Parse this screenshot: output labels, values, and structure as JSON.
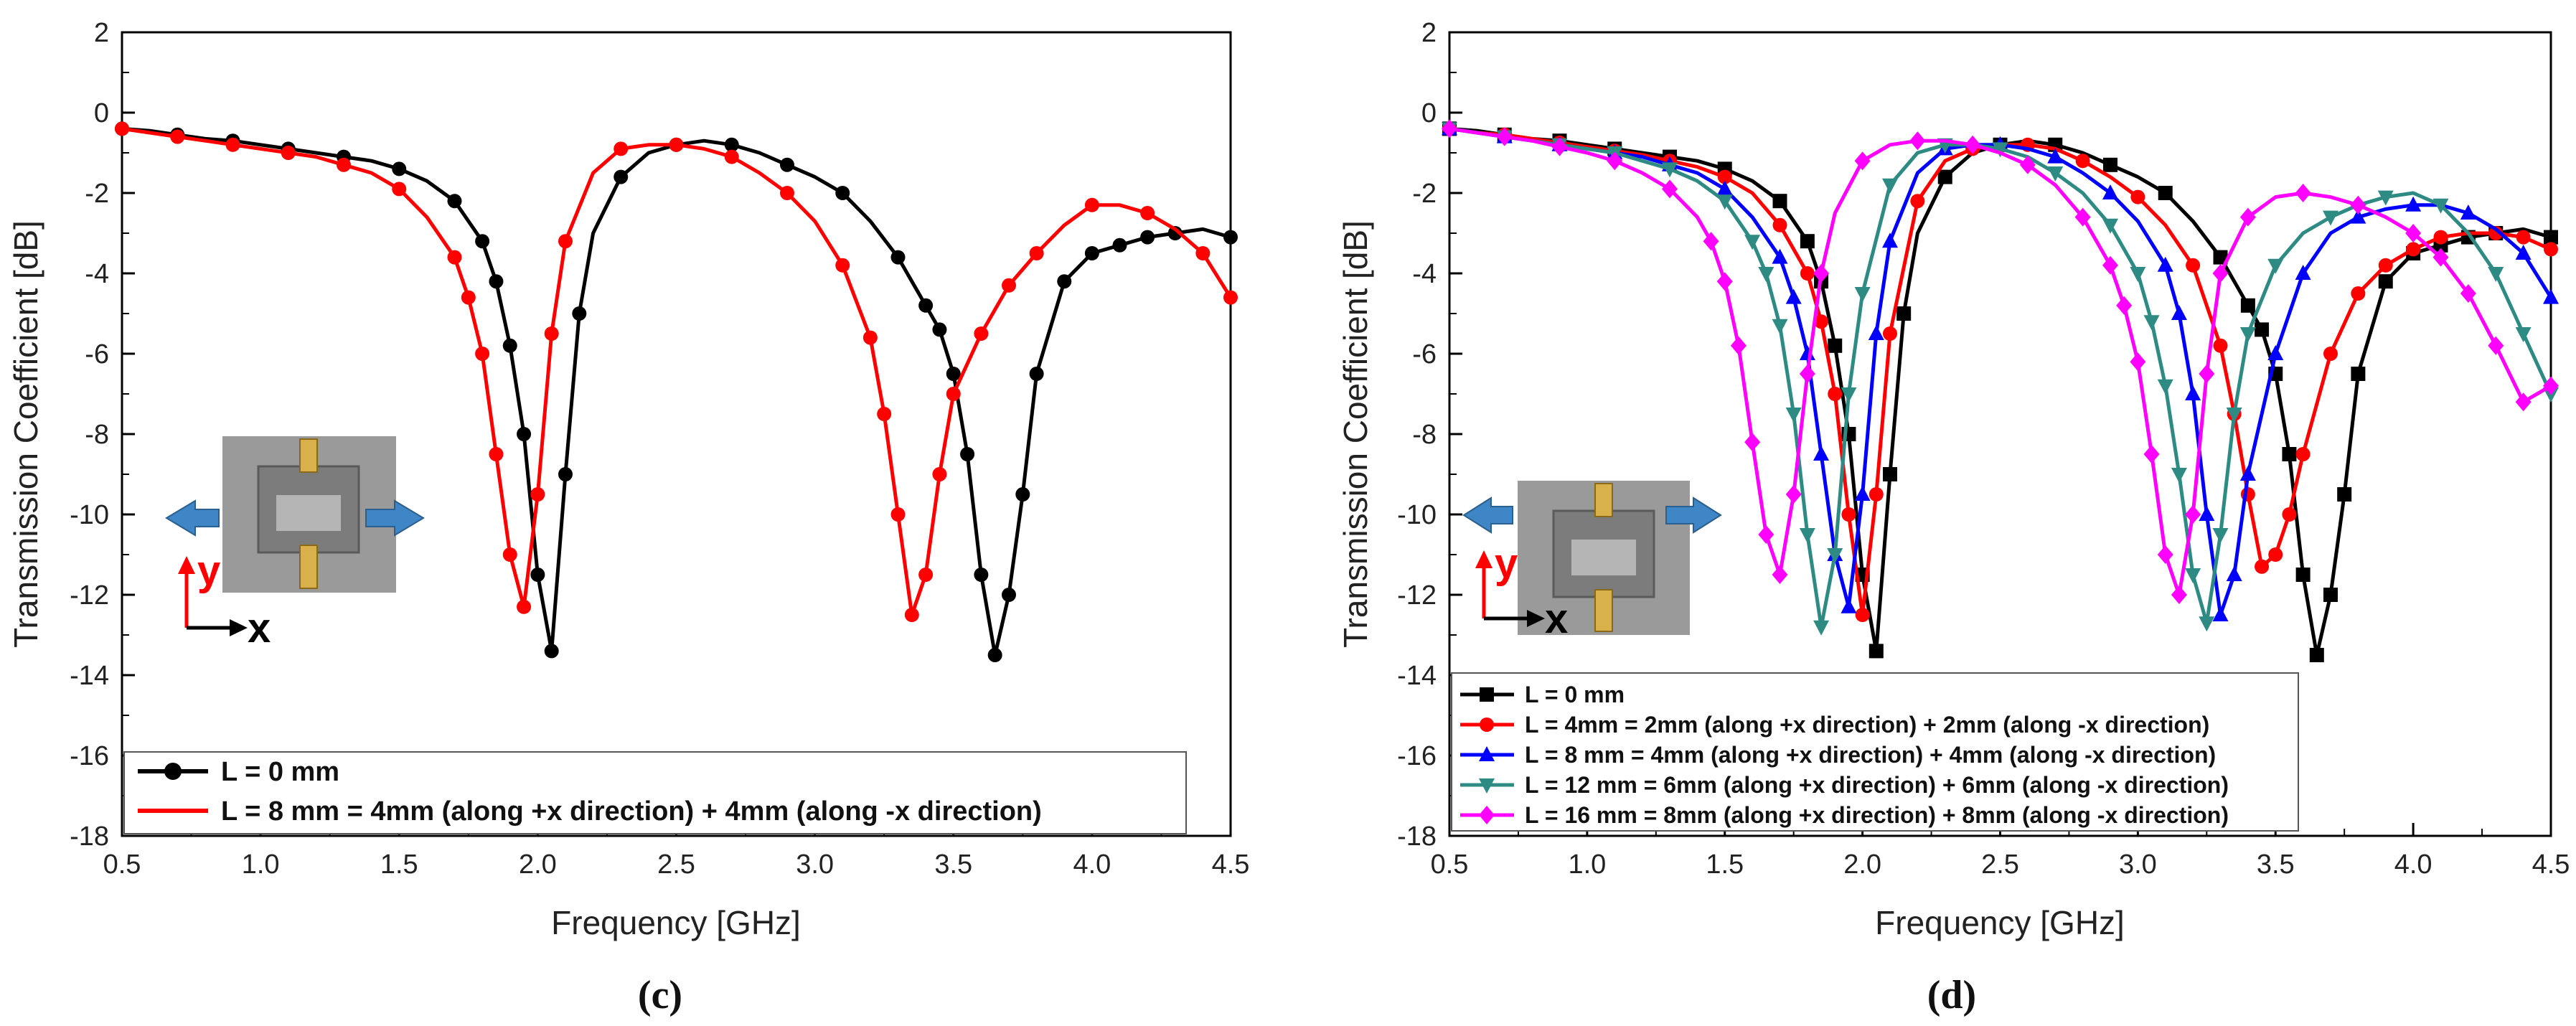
{
  "chart_data": [
    {
      "type": "line",
      "panel_label": "(c)",
      "xlabel": "Frequency [GHz]",
      "ylabel": "Transmission Coefficient [dB]",
      "xlim": [
        0.5,
        4.5
      ],
      "ylim": [
        -18,
        2
      ],
      "xticks": [
        "0.5",
        "1.0",
        "1.5",
        "2.0",
        "2.5",
        "3.0",
        "3.5",
        "4.0",
        "4.5"
      ],
      "yticks": [
        "2",
        "0",
        "-2",
        "-4",
        "-6",
        "-8",
        "-10",
        "-12",
        "-14",
        "-16",
        "-18"
      ],
      "legend_position": "bottom",
      "series": [
        {
          "name": "L = 0 mm",
          "color": "#000000",
          "marker": "circle",
          "x": [
            0.5,
            0.6,
            0.7,
            0.8,
            0.9,
            1.0,
            1.1,
            1.2,
            1.3,
            1.4,
            1.5,
            1.6,
            1.7,
            1.8,
            1.85,
            1.9,
            1.95,
            2.0,
            2.05,
            2.1,
            2.15,
            2.2,
            2.3,
            2.4,
            2.5,
            2.6,
            2.7,
            2.8,
            2.9,
            3.0,
            3.1,
            3.2,
            3.3,
            3.4,
            3.45,
            3.5,
            3.55,
            3.6,
            3.65,
            3.7,
            3.75,
            3.8,
            3.9,
            4.0,
            4.1,
            4.2,
            4.3,
            4.4,
            4.5
          ],
          "y": [
            -0.4,
            -0.45,
            -0.55,
            -0.65,
            -0.7,
            -0.8,
            -0.9,
            -1.0,
            -1.1,
            -1.2,
            -1.4,
            -1.7,
            -2.2,
            -3.2,
            -4.2,
            -5.8,
            -8.0,
            -11.5,
            -13.4,
            -9.0,
            -5.0,
            -3.0,
            -1.6,
            -1.0,
            -0.8,
            -0.7,
            -0.8,
            -1.0,
            -1.3,
            -1.6,
            -2.0,
            -2.7,
            -3.6,
            -4.8,
            -5.4,
            -6.5,
            -8.5,
            -11.5,
            -13.5,
            -12.0,
            -9.5,
            -6.5,
            -4.2,
            -3.5,
            -3.3,
            -3.1,
            -3.0,
            -2.9,
            -3.1
          ]
        },
        {
          "name": "L = 8 mm = 4mm (along +x direction) + 4mm (along -x direction)",
          "color": "#ff0000",
          "marker": "circle",
          "x": [
            0.5,
            0.6,
            0.7,
            0.8,
            0.9,
            1.0,
            1.1,
            1.2,
            1.3,
            1.4,
            1.5,
            1.6,
            1.7,
            1.75,
            1.8,
            1.85,
            1.9,
            1.95,
            2.0,
            2.05,
            2.1,
            2.2,
            2.3,
            2.4,
            2.5,
            2.6,
            2.7,
            2.8,
            2.9,
            3.0,
            3.1,
            3.2,
            3.25,
            3.3,
            3.35,
            3.4,
            3.45,
            3.5,
            3.6,
            3.7,
            3.8,
            3.9,
            4.0,
            4.1,
            4.2,
            4.3,
            4.4,
            4.5
          ],
          "y": [
            -0.4,
            -0.5,
            -0.6,
            -0.7,
            -0.8,
            -0.9,
            -1.0,
            -1.1,
            -1.3,
            -1.5,
            -1.9,
            -2.6,
            -3.6,
            -4.6,
            -6.0,
            -8.5,
            -11.0,
            -12.3,
            -9.5,
            -5.5,
            -3.2,
            -1.5,
            -0.9,
            -0.8,
            -0.8,
            -0.9,
            -1.1,
            -1.5,
            -2.0,
            -2.7,
            -3.8,
            -5.6,
            -7.5,
            -10.0,
            -12.5,
            -11.5,
            -9.0,
            -7.0,
            -5.5,
            -4.3,
            -3.5,
            -2.8,
            -2.3,
            -2.3,
            -2.5,
            -2.9,
            -3.5,
            -4.6
          ]
        }
      ]
    },
    {
      "type": "line",
      "panel_label": "(d)",
      "xlabel": "Frequency [GHz]",
      "ylabel": "Transmission Coefficient [dB]",
      "xlim": [
        0.5,
        4.5
      ],
      "ylim": [
        -18,
        2
      ],
      "xticks": [
        "0.5",
        "1.0",
        "1.5",
        "2.0",
        "2.5",
        "3.0",
        "3.5",
        "4.0",
        "4.5"
      ],
      "yticks": [
        "2",
        "0",
        "-2",
        "-4",
        "-6",
        "-8",
        "-10",
        "-12",
        "-14",
        "-16",
        "-18"
      ],
      "legend_position": "bottom-left",
      "series": [
        {
          "name": "L = 0 mm",
          "color": "#000000",
          "marker": "square",
          "x": [
            0.5,
            0.6,
            0.7,
            0.8,
            0.9,
            1.0,
            1.1,
            1.2,
            1.3,
            1.4,
            1.5,
            1.6,
            1.7,
            1.8,
            1.85,
            1.9,
            1.95,
            2.0,
            2.05,
            2.1,
            2.15,
            2.2,
            2.3,
            2.4,
            2.5,
            2.6,
            2.7,
            2.8,
            2.9,
            3.0,
            3.1,
            3.2,
            3.3,
            3.4,
            3.45,
            3.5,
            3.55,
            3.6,
            3.65,
            3.7,
            3.75,
            3.8,
            3.9,
            4.0,
            4.1,
            4.2,
            4.3,
            4.4,
            4.5
          ],
          "y": [
            -0.4,
            -0.45,
            -0.55,
            -0.65,
            -0.7,
            -0.8,
            -0.9,
            -1.0,
            -1.1,
            -1.2,
            -1.4,
            -1.7,
            -2.2,
            -3.2,
            -4.2,
            -5.8,
            -8.0,
            -11.5,
            -13.4,
            -9.0,
            -5.0,
            -3.0,
            -1.6,
            -1.0,
            -0.8,
            -0.7,
            -0.8,
            -1.0,
            -1.3,
            -1.6,
            -2.0,
            -2.7,
            -3.6,
            -4.8,
            -5.4,
            -6.5,
            -8.5,
            -11.5,
            -13.5,
            -12.0,
            -9.5,
            -6.5,
            -4.2,
            -3.5,
            -3.3,
            -3.1,
            -3.0,
            -2.9,
            -3.1
          ]
        },
        {
          "name": "L = 4mm = 2mm (along +x direction) + 2mm (along -x direction)",
          "color": "#ff0000",
          "marker": "circle",
          "x": [
            0.5,
            0.6,
            0.7,
            0.8,
            0.9,
            1.0,
            1.1,
            1.2,
            1.3,
            1.4,
            1.5,
            1.6,
            1.7,
            1.8,
            1.85,
            1.9,
            1.95,
            2.0,
            2.05,
            2.1,
            2.2,
            2.3,
            2.4,
            2.5,
            2.6,
            2.7,
            2.8,
            2.9,
            3.0,
            3.1,
            3.2,
            3.3,
            3.35,
            3.4,
            3.45,
            3.5,
            3.55,
            3.6,
            3.7,
            3.8,
            3.9,
            4.0,
            4.1,
            4.2,
            4.3,
            4.4,
            4.5
          ],
          "y": [
            -0.4,
            -0.5,
            -0.55,
            -0.65,
            -0.75,
            -0.85,
            -0.95,
            -1.05,
            -1.2,
            -1.35,
            -1.6,
            -2.0,
            -2.8,
            -4.0,
            -5.2,
            -7.0,
            -10.0,
            -12.5,
            -9.5,
            -5.5,
            -2.2,
            -1.2,
            -0.9,
            -0.8,
            -0.8,
            -0.9,
            -1.2,
            -1.6,
            -2.1,
            -2.8,
            -3.8,
            -5.8,
            -7.5,
            -9.5,
            -11.3,
            -11.0,
            -10.0,
            -8.5,
            -6.0,
            -4.5,
            -3.8,
            -3.4,
            -3.1,
            -3.0,
            -3.0,
            -3.1,
            -3.4
          ]
        },
        {
          "name": "L = 8 mm = 4mm (along +x direction) + 4mm (along -x direction)",
          "color": "#0000ff",
          "marker": "triangle-up",
          "x": [
            0.5,
            0.6,
            0.7,
            0.8,
            0.9,
            1.0,
            1.1,
            1.2,
            1.3,
            1.4,
            1.5,
            1.6,
            1.7,
            1.75,
            1.8,
            1.85,
            1.9,
            1.95,
            2.0,
            2.05,
            2.1,
            2.2,
            2.3,
            2.4,
            2.5,
            2.6,
            2.7,
            2.8,
            2.9,
            3.0,
            3.1,
            3.15,
            3.2,
            3.25,
            3.3,
            3.35,
            3.4,
            3.5,
            3.6,
            3.7,
            3.8,
            3.9,
            4.0,
            4.1,
            4.2,
            4.3,
            4.4,
            4.5
          ],
          "y": [
            -0.4,
            -0.5,
            -0.6,
            -0.7,
            -0.8,
            -0.9,
            -1.0,
            -1.1,
            -1.3,
            -1.5,
            -1.9,
            -2.6,
            -3.6,
            -4.6,
            -6.0,
            -8.5,
            -11.0,
            -12.3,
            -9.5,
            -5.5,
            -3.2,
            -1.5,
            -0.9,
            -0.8,
            -0.8,
            -0.9,
            -1.1,
            -1.5,
            -2.0,
            -2.7,
            -3.8,
            -5.0,
            -7.0,
            -10.0,
            -12.5,
            -11.5,
            -9.0,
            -6.0,
            -4.0,
            -3.0,
            -2.6,
            -2.4,
            -2.3,
            -2.3,
            -2.5,
            -2.9,
            -3.5,
            -4.6
          ]
        },
        {
          "name": "L = 12 mm = 6mm (along +x direction) + 6mm (along -x direction)",
          "color": "#2e8b84",
          "marker": "triangle-down",
          "x": [
            0.5,
            0.6,
            0.7,
            0.8,
            0.9,
            1.0,
            1.1,
            1.2,
            1.3,
            1.4,
            1.5,
            1.6,
            1.65,
            1.7,
            1.75,
            1.8,
            1.85,
            1.9,
            1.95,
            2.0,
            2.1,
            2.2,
            2.3,
            2.4,
            2.5,
            2.6,
            2.7,
            2.8,
            2.9,
            3.0,
            3.05,
            3.1,
            3.15,
            3.2,
            3.25,
            3.3,
            3.35,
            3.4,
            3.5,
            3.6,
            3.7,
            3.8,
            3.9,
            4.0,
            4.1,
            4.2,
            4.3,
            4.4,
            4.5
          ],
          "y": [
            -0.4,
            -0.5,
            -0.6,
            -0.7,
            -0.8,
            -0.9,
            -1.0,
            -1.2,
            -1.4,
            -1.7,
            -2.2,
            -3.2,
            -4.0,
            -5.3,
            -7.5,
            -10.5,
            -12.8,
            -11.0,
            -7.0,
            -4.5,
            -1.8,
            -1.0,
            -0.8,
            -0.8,
            -0.9,
            -1.1,
            -1.5,
            -2.0,
            -2.8,
            -4.0,
            -5.2,
            -6.8,
            -9.0,
            -11.5,
            -12.7,
            -10.5,
            -7.5,
            -5.5,
            -3.8,
            -3.0,
            -2.6,
            -2.3,
            -2.1,
            -2.0,
            -2.3,
            -3.0,
            -4.0,
            -5.5,
            -7.0
          ]
        },
        {
          "name": "L = 16 mm = 8mm (along +x direction) + 8mm (along -x direction)",
          "color": "#ff00ff",
          "marker": "diamond",
          "x": [
            0.5,
            0.6,
            0.7,
            0.8,
            0.9,
            1.0,
            1.1,
            1.2,
            1.3,
            1.4,
            1.45,
            1.5,
            1.55,
            1.6,
            1.65,
            1.7,
            1.75,
            1.8,
            1.85,
            1.9,
            2.0,
            2.1,
            2.2,
            2.3,
            2.4,
            2.5,
            2.6,
            2.7,
            2.8,
            2.9,
            2.95,
            3.0,
            3.05,
            3.1,
            3.15,
            3.2,
            3.25,
            3.3,
            3.4,
            3.5,
            3.6,
            3.7,
            3.8,
            3.9,
            4.0,
            4.1,
            4.2,
            4.3,
            4.4,
            4.5
          ],
          "y": [
            -0.4,
            -0.5,
            -0.6,
            -0.7,
            -0.85,
            -1.0,
            -1.2,
            -1.5,
            -1.9,
            -2.6,
            -3.2,
            -4.2,
            -5.8,
            -8.2,
            -10.5,
            -11.5,
            -9.5,
            -6.5,
            -4.0,
            -2.5,
            -1.2,
            -0.8,
            -0.7,
            -0.7,
            -0.8,
            -1.0,
            -1.3,
            -1.8,
            -2.6,
            -3.8,
            -4.8,
            -6.2,
            -8.5,
            -11.0,
            -12.0,
            -10.0,
            -6.5,
            -4.0,
            -2.6,
            -2.1,
            -2.0,
            -2.1,
            -2.3,
            -2.6,
            -3.0,
            -3.6,
            -4.5,
            -5.8,
            -7.2,
            -6.8
          ]
        }
      ]
    }
  ]
}
